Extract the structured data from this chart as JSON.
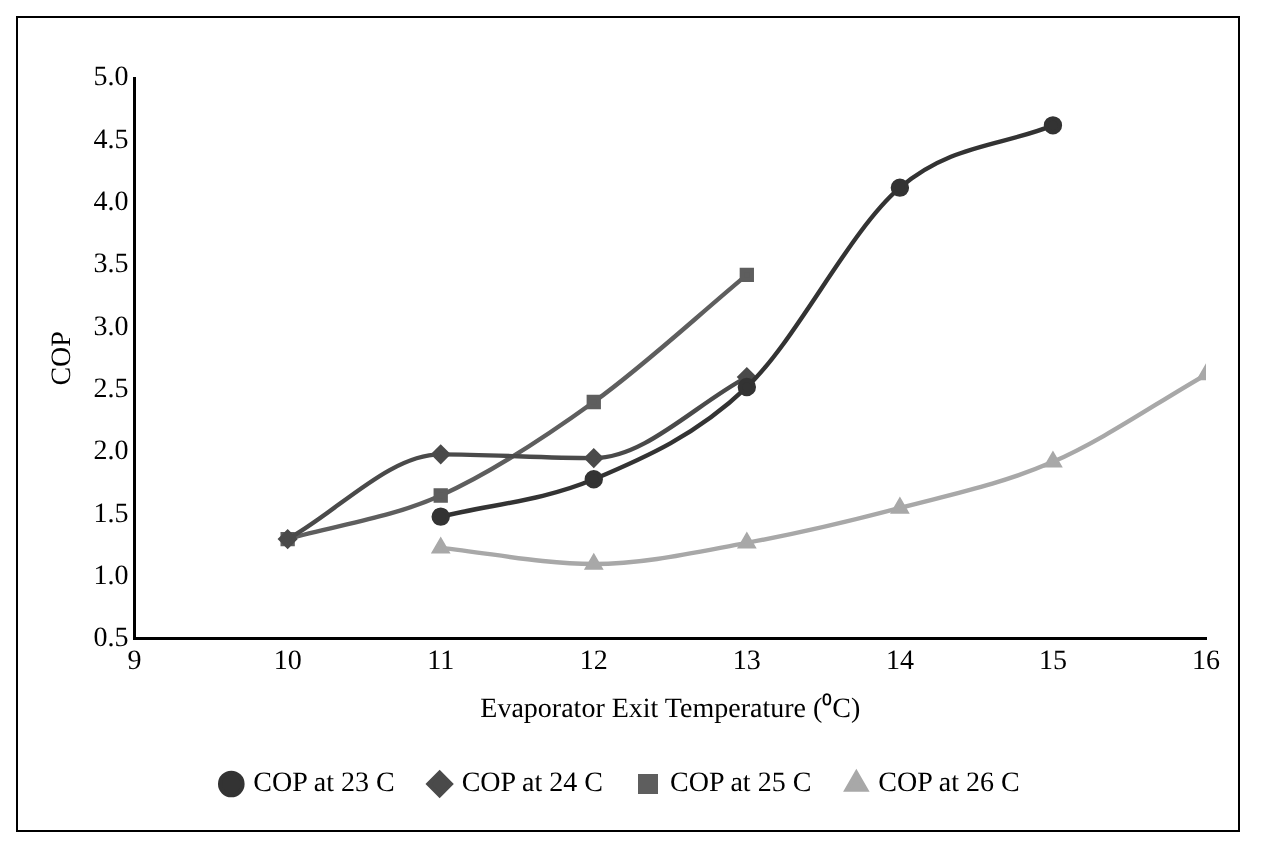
{
  "chart_data": {
    "type": "line",
    "xlabel": "Evaporator Exit Temperature (⁰C)",
    "ylabel": "COP",
    "xlim": [
      9,
      16
    ],
    "xticks": [
      9,
      10,
      11,
      12,
      13,
      14,
      15,
      16
    ],
    "ylim": [
      0.5,
      5.0
    ],
    "yticks": [
      {
        "value": 0.5,
        "label": "0.5"
      },
      {
        "value": 1.0,
        "label": "1.0"
      },
      {
        "value": 1.5,
        "label": "1.5"
      },
      {
        "value": 2.0,
        "label": "2.0"
      },
      {
        "value": 2.5,
        "label": "2.5"
      },
      {
        "value": 3.0,
        "label": "3.0"
      },
      {
        "value": 3.5,
        "label": "3.5"
      },
      {
        "value": 4.0,
        "label": "4.0"
      },
      {
        "value": 4.5,
        "label": "4.5"
      },
      {
        "value": 5.0,
        "label": "5.0"
      }
    ],
    "grid": false,
    "legend": "bottom",
    "line_style": "solid",
    "series": [
      {
        "name": "COP at 23 C",
        "color": "#333333",
        "marker": "circle",
        "x": [
          11,
          12,
          13,
          14,
          15
        ],
        "values": [
          1.48,
          1.78,
          2.52,
          4.12,
          4.62
        ]
      },
      {
        "name": "COP at 24 C",
        "color": "#4a4a4a",
        "marker": "diamond",
        "x": [
          10,
          11,
          12,
          13
        ],
        "values": [
          1.3,
          1.98,
          1.95,
          2.6
        ]
      },
      {
        "name": "COP at 25 C",
        "color": "#5e5e5e",
        "marker": "square",
        "x": [
          10,
          11,
          12,
          13
        ],
        "values": [
          1.3,
          1.65,
          2.4,
          3.42
        ]
      },
      {
        "name": "COP at 26 C",
        "color": "#a8a8a8",
        "marker": "triangle",
        "x": [
          11,
          12,
          13,
          14,
          15,
          16
        ],
        "values": [
          1.23,
          1.1,
          1.27,
          1.55,
          1.92,
          2.62
        ]
      }
    ]
  }
}
